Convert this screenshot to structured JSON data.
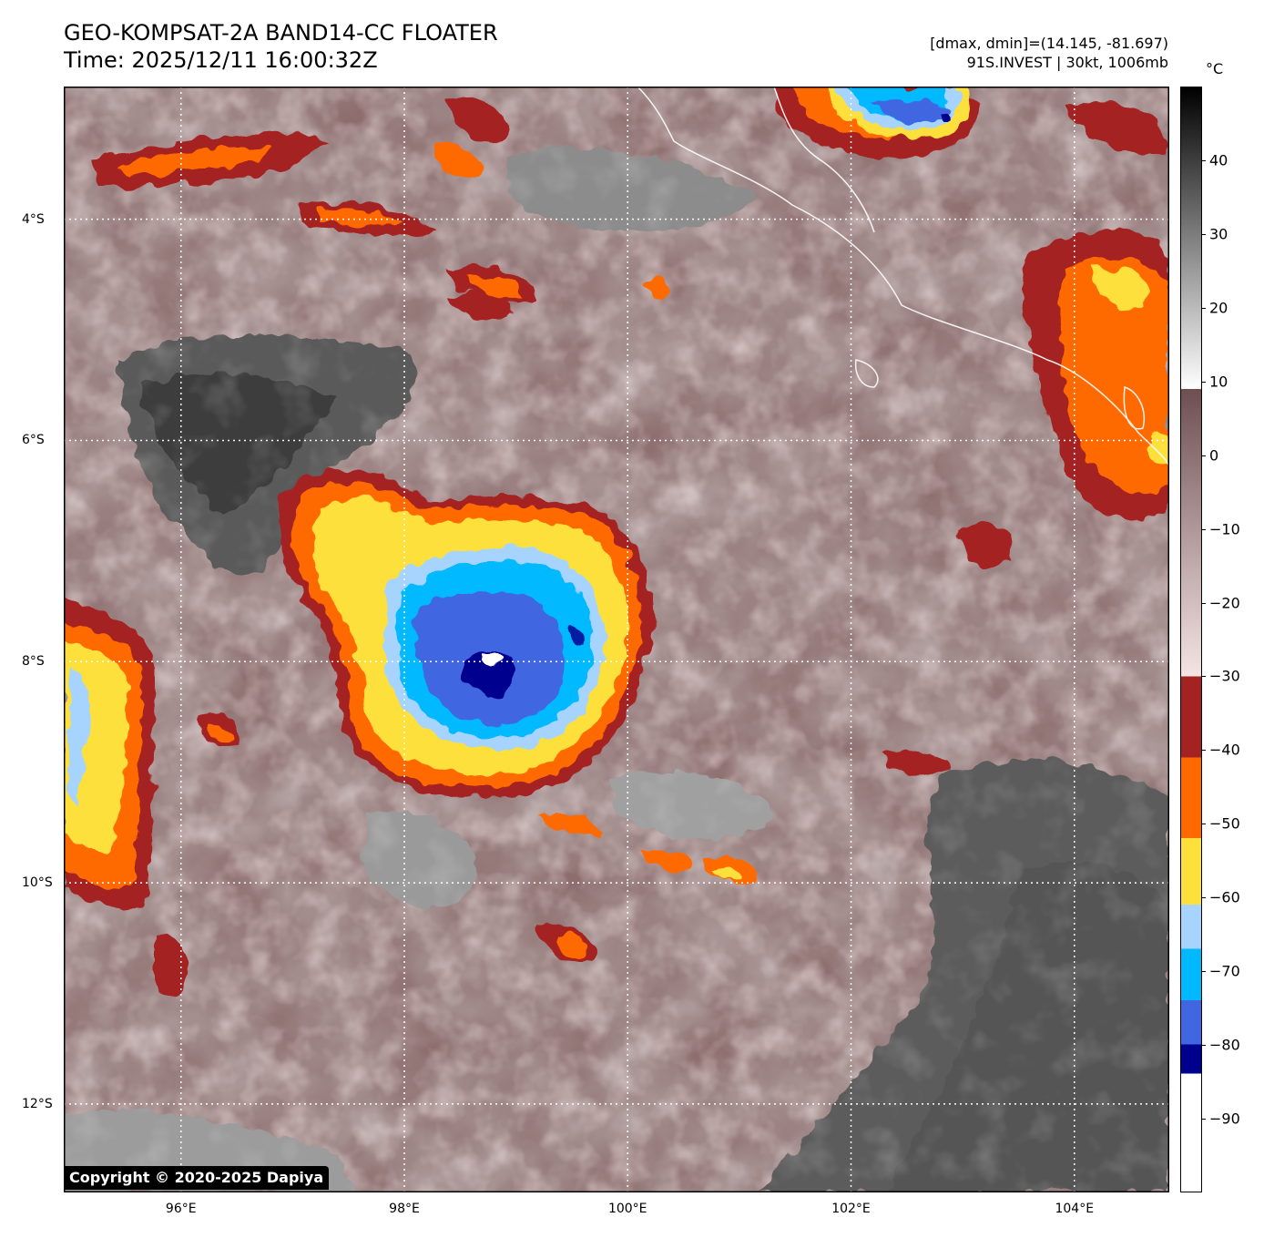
{
  "header": {
    "title_line1": "GEO-KOMPSAT-2A BAND14-CC FLOATER",
    "title_line2": "Time: 2025/12/11 16:00:32Z",
    "info_line1": "[dmax, dmin]=(14.145, -81.697)",
    "info_line2": "91S.INVEST | 30kt, 1006mb"
  },
  "map": {
    "lon_labels": [
      "96°E",
      "98°E",
      "100°E",
      "102°E",
      "104°E"
    ],
    "lat_labels": [
      "4°S",
      "6°S",
      "8°S",
      "10°S",
      "12°S"
    ],
    "lon_values": [
      96,
      98,
      100,
      102,
      104
    ],
    "lat_values": [
      -4,
      -6,
      -8,
      -10,
      -12
    ],
    "extent": {
      "lon_min": 94.95,
      "lon_max": 104.85,
      "lat_min": -12.8,
      "lat_max": -2.8
    },
    "storm_center": {
      "lon": 98.8,
      "lat": -8.1
    },
    "copyright": "Copyright © 2020-2025 Dapiya"
  },
  "colorbar": {
    "unit": "°C",
    "labels": [
      "40",
      "30",
      "20",
      "10",
      "0",
      "−10",
      "−20",
      "−30",
      "−40",
      "−50",
      "−60",
      "−70",
      "−80",
      "−90"
    ],
    "values": [
      40,
      30,
      20,
      10,
      0,
      -10,
      -20,
      -30,
      -40,
      -50,
      -60,
      -70,
      -80,
      -90
    ],
    "range": [
      -100,
      50
    ],
    "colors": {
      "gray_top": "#000000",
      "gray_bottom": "#ffffff",
      "brown_warm": "#6e4f4f",
      "pink_cold": "#f5e4e4",
      "dark_red": "#a52222",
      "orange": "#ff6a00",
      "yellow": "#fde03a",
      "light_blue": "#a6d4ff",
      "cyan": "#00b9ff",
      "royal_blue": "#4166e1",
      "navy": "#00008f",
      "white": "#ffffff"
    }
  }
}
